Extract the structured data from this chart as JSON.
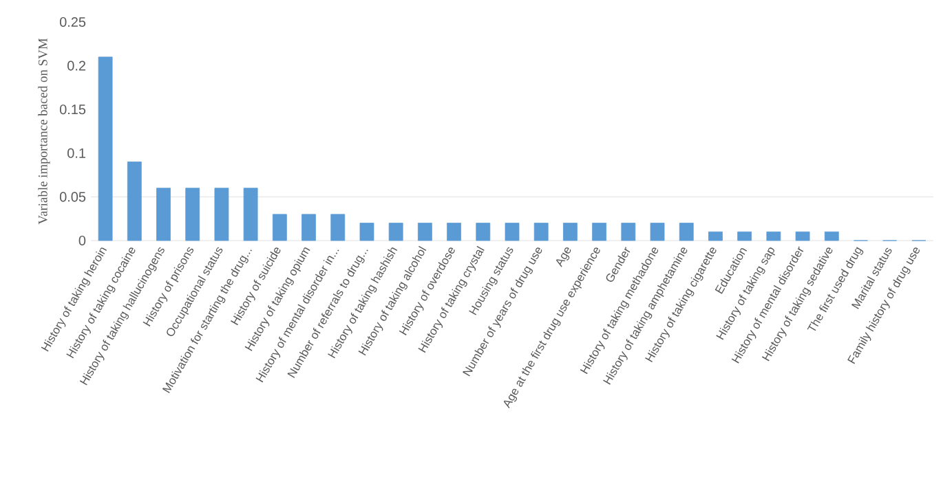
{
  "chart_data": {
    "type": "bar",
    "ylabel": "Variable  importance baced on SVM",
    "categories": [
      "History of taking heroin",
      "History of taking cocaine",
      "History of taking hallucinogens",
      "History of prisons",
      "Occupational status",
      "Motivation for starting the drug...",
      "History of suicide",
      "History of taking opium",
      "History of mental disorder in...",
      "Number of referrals to drug...",
      "History of taking hashish",
      "History of taking alcohol",
      "History of overdose",
      "History of taking crystal",
      "Housing status",
      "Number of years of drug use",
      "Age",
      "Age at the first drug use experience",
      "Gender",
      "History of taking methadone",
      "History of taking amphetamine",
      "History of taking cigarette",
      "Education",
      "History of taking sap",
      "History of mental disorder",
      "History of taking sedative",
      "The first used drug",
      "Marital status",
      "Family history of drug use"
    ],
    "values": [
      0.21,
      0.09,
      0.06,
      0.06,
      0.06,
      0.06,
      0.03,
      0.03,
      0.03,
      0.02,
      0.02,
      0.02,
      0.02,
      0.02,
      0.02,
      0.02,
      0.02,
      0.02,
      0.02,
      0.02,
      0.02,
      0.01,
      0.01,
      0.01,
      0.01,
      0.01,
      0,
      0,
      0
    ],
    "color": "#5b9bd5",
    "ylim": [
      0,
      0.25
    ],
    "yticks": [
      0,
      0.05,
      0.1,
      0.15,
      0.2,
      0.25
    ],
    "ref_lines": [
      {
        "axis": "y",
        "value": 0.05,
        "color": "#d9d9d9"
      }
    ]
  }
}
